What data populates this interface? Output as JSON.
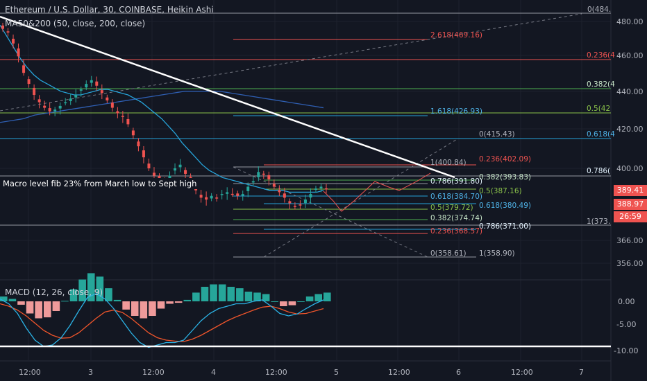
{
  "header": {
    "title": "Ethereum / U.S. Dollar, 30, COINBASE, Heikin Ashi",
    "ma_label": "MA50&200 (50, close, 200, close)",
    "macd_label": "MACD (12, 26, close, 9)"
  },
  "note": "Macro level fib 23% from March low to Sept high",
  "colors": {
    "background": "#131722",
    "up": "#26a69a",
    "down": "#ef5350",
    "ma50": "#26a3d9",
    "ma200": "#2f5fb3",
    "macd": "#2bb3e6",
    "signal": "#f0552b",
    "trendline": "#ffffff",
    "grid": "#2a2e39"
  },
  "price_axis": {
    "ticks": [
      "480.00",
      "460.00",
      "440.00",
      "420.00",
      "400.00",
      "366.00",
      "356.00"
    ]
  },
  "macd_axis": {
    "ticks": [
      "0.00",
      "-5.00",
      "-10.00"
    ]
  },
  "time_axis": {
    "ticks": [
      "12:00",
      "3",
      "12:00",
      "4",
      "12:00",
      "5",
      "12:00",
      "6",
      "12:00",
      "7"
    ]
  },
  "price_tags": [
    {
      "text": "389.41",
      "color": "#ef5350"
    },
    {
      "text": "388.97",
      "color": "#ef5350"
    },
    {
      "text": "26:59",
      "color": "#ef5350"
    }
  ],
  "fib_levels": [
    {
      "text": "0(484.",
      "color": "#b2b5be"
    },
    {
      "text": "2.618(469.16)",
      "color": "#ef5350"
    },
    {
      "text": "0.236(4",
      "color": "#ef5350"
    },
    {
      "text": "0.382(4",
      "color": "#c8e6c9"
    },
    {
      "text": "1.618(426.93)",
      "color": "#4fb3e8"
    },
    {
      "text": "0.5(42",
      "color": "#8bc34a"
    },
    {
      "text": "0(415.43)",
      "color": "#b2b5be"
    },
    {
      "text": "0.618(4",
      "color": "#4fb3e8"
    },
    {
      "text": "1(400.84)",
      "color": "#b2b5be"
    },
    {
      "text": "0.236(402.09)",
      "color": "#ef5350"
    },
    {
      "text": "0.382(393.83)",
      "color": "#c8e6c9"
    },
    {
      "text": "0.786(",
      "color": "#e3f2fd"
    },
    {
      "text": "0.786(391.80)",
      "color": "#e3f2fd"
    },
    {
      "text": "0.5(387.16)",
      "color": "#8bc34a"
    },
    {
      "text": "0.618(384.70)",
      "color": "#4fb3e8"
    },
    {
      "text": "0.618(380.49)",
      "color": "#4fb3e8"
    },
    {
      "text": "0.5(379.72)",
      "color": "#8bc34a"
    },
    {
      "text": "0.382(374.74)",
      "color": "#c8e6c9"
    },
    {
      "text": "1(373.",
      "color": "#b2b5be"
    },
    {
      "text": "0.786(371.00)",
      "color": "#e3f2fd"
    },
    {
      "text": "0.236(368.57)",
      "color": "#ef5350"
    },
    {
      "text": "0(358.61)",
      "color": "#b2b5be"
    },
    {
      "text": "1(358.90)",
      "color": "#b2b5be"
    }
  ],
  "chart_data": {
    "type": "candlestick",
    "title": "Ethereum / U.S. Dollar, 30, COINBASE, Heikin Ashi",
    "price_range": [
      350,
      490
    ],
    "price_close_series": [
      476,
      474,
      468,
      461,
      452,
      446,
      440,
      436,
      433,
      431,
      432,
      434,
      436,
      438,
      440,
      443,
      446,
      448,
      445,
      441,
      437,
      433,
      430,
      428,
      424,
      418,
      412,
      406,
      400,
      396,
      394,
      393,
      396,
      400,
      402,
      397,
      392,
      388,
      384,
      383,
      385,
      384,
      386,
      387,
      386,
      385,
      386,
      390,
      393,
      398,
      397,
      394,
      390,
      387,
      384,
      381,
      379,
      380,
      383,
      386,
      389,
      390,
      389
    ],
    "ma50": [
      478,
      472,
      466,
      460,
      455,
      451,
      448,
      446,
      444,
      442,
      441,
      440,
      440,
      441,
      442,
      443,
      443,
      442,
      441,
      440,
      438,
      436,
      433,
      430,
      427,
      423,
      419,
      414,
      410,
      406,
      402,
      399,
      397,
      395,
      394,
      393,
      392,
      391,
      390,
      389,
      388,
      388,
      388,
      387,
      387,
      387,
      387,
      387,
      388
    ],
    "ma200": [
      425,
      426,
      427,
      429,
      430,
      431,
      432,
      433,
      434,
      435,
      436,
      437,
      438,
      439,
      440,
      441,
      442,
      442,
      442,
      442,
      441,
      440,
      439,
      438,
      437,
      436,
      435,
      434,
      433
    ],
    "macd_range": [
      -11,
      2
    ],
    "macd": [
      0.5,
      -0.5,
      -2.5,
      -5.5,
      -8,
      -9.3,
      -9,
      -7.5,
      -5,
      -2,
      0.8,
      1.6,
      0.5,
      -1.5,
      -4,
      -6.5,
      -8.5,
      -9.5,
      -9,
      -8.5,
      -8.5,
      -8,
      -6,
      -4,
      -2.5,
      -1.5,
      -1,
      -0.5,
      -0.5,
      0,
      0.3,
      -1,
      -2.5,
      -3,
      -2.6,
      -1.5,
      -0.5,
      0.3
    ],
    "signal": [
      -0.5,
      -1,
      -1.8,
      -3,
      -4.5,
      -6,
      -7,
      -7.6,
      -7.5,
      -6.5,
      -5,
      -3.5,
      -2.2,
      -1.8,
      -2.3,
      -3.5,
      -5,
      -6.5,
      -7.5,
      -8,
      -8.2,
      -8.3,
      -7.8,
      -7,
      -6,
      -5,
      -4,
      -3.2,
      -2.5,
      -1.8,
      -1.2,
      -1,
      -1.5,
      -2.2,
      -2.6,
      -2.5,
      -2,
      -1.5
    ]
  }
}
